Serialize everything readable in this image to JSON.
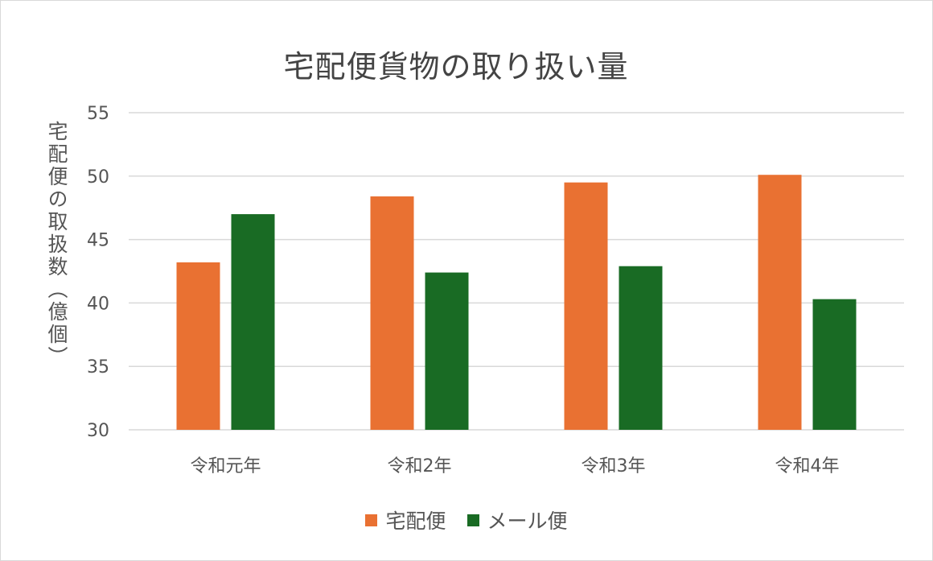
{
  "chart_data": {
    "type": "bar",
    "title": "宅配便貨物の取り扱い量",
    "xlabel": "",
    "ylabel": "宅配便の取扱数（億個）",
    "categories": [
      "令和元年",
      "令和2年",
      "令和3年",
      "令和4年"
    ],
    "series": [
      {
        "name": "宅配便",
        "values": [
          43.2,
          48.4,
          49.5,
          50.1
        ],
        "color": "#E97132"
      },
      {
        "name": "メール便",
        "values": [
          47.0,
          42.4,
          42.9,
          40.3
        ],
        "color": "#196B24"
      }
    ],
    "ylim": [
      30,
      55
    ],
    "yticks": [
      "30",
      "35",
      "40",
      "45",
      "50",
      "55"
    ],
    "grid": true,
    "legend": "bottom"
  }
}
